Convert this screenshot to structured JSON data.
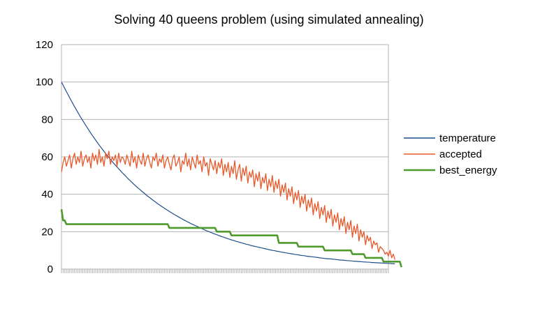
{
  "chart_data": {
    "type": "line",
    "title": "Solving 40 queens problem (using simulated annealing)",
    "xlabel": "",
    "ylabel": "",
    "ylim": [
      0,
      120
    ],
    "yticks": [
      0,
      20,
      40,
      60,
      80,
      100,
      120
    ],
    "x_count": 201,
    "grid": "horizontal",
    "legend_position": "right",
    "series": [
      {
        "name": "temperature",
        "color": "#1f4e8c",
        "values": [
          100,
          98.3,
          96.6,
          94.9,
          93.3,
          91.6,
          90.0,
          88.4,
          86.8,
          85.3,
          83.8,
          82.3,
          80.8,
          79.4,
          78.0,
          76.6,
          75.3,
          73.9,
          72.6,
          71.3,
          70.1,
          68.8,
          67.6,
          66.4,
          65.2,
          64.1,
          62.9,
          61.8,
          60.7,
          59.7,
          58.6,
          57.6,
          56.5,
          55.5,
          54.6,
          53.6,
          52.7,
          51.7,
          50.8,
          49.9,
          49.0,
          48.1,
          47.3,
          46.4,
          45.6,
          44.8,
          44.0,
          43.2,
          42.5,
          41.7,
          41.0,
          40.3,
          39.5,
          38.8,
          38.2,
          37.5,
          36.8,
          36.2,
          35.5,
          34.9,
          34.3,
          33.7,
          33.1,
          32.5,
          31.9,
          31.4,
          30.8,
          30.3,
          29.7,
          29.2,
          28.7,
          28.2,
          27.7,
          27.2,
          26.7,
          26.2,
          25.8,
          25.3,
          24.9,
          24.4,
          24.0,
          23.6,
          23.2,
          22.8,
          22.4,
          22.0,
          21.6,
          21.2,
          20.8,
          20.4,
          20.1,
          19.7,
          19.4,
          19.0,
          18.7,
          18.4,
          18.0,
          17.7,
          17.4,
          17.1,
          16.8,
          16.5,
          16.2,
          15.9,
          15.6,
          15.4,
          15.1,
          14.8,
          14.6,
          14.3,
          14.1,
          13.8,
          13.6,
          13.3,
          13.1,
          12.9,
          12.6,
          12.4,
          12.2,
          12.0,
          11.8,
          11.6,
          11.4,
          11.2,
          11.0,
          10.8,
          10.6,
          10.4,
          10.2,
          10.0,
          9.9,
          9.7,
          9.5,
          9.4,
          9.2,
          9.0,
          8.9,
          8.7,
          8.6,
          8.4,
          8.3,
          8.1,
          8.0,
          7.8,
          7.7,
          7.6,
          7.4,
          7.3,
          7.2,
          7.1,
          6.9,
          6.8,
          6.7,
          6.6,
          6.5,
          6.4,
          6.3,
          6.2,
          6.0,
          5.9,
          5.8,
          5.7,
          5.6,
          5.5,
          5.5,
          5.4,
          5.3,
          5.2,
          5.1,
          5.0,
          4.9,
          4.8,
          4.8,
          4.7,
          4.6,
          4.5,
          4.5,
          4.4,
          4.3,
          4.2,
          4.2,
          4.1,
          4.0,
          4.0,
          3.9,
          3.8,
          3.8,
          3.7,
          3.7,
          3.6,
          3.5,
          3.5,
          3.4,
          3.4,
          3.3,
          3.3,
          3.2,
          3.2,
          3.1,
          3.1,
          3.0,
          3.0,
          2.9,
          2.9,
          2.8
        ]
      },
      {
        "name": "accepted",
        "color": "#e8582a",
        "values": [
          52,
          57,
          60,
          55,
          58,
          61,
          54,
          59,
          62,
          56,
          60,
          57,
          63,
          55,
          59,
          61,
          57,
          60,
          54,
          62,
          58,
          61,
          56,
          64,
          57,
          60,
          55,
          62,
          59,
          63,
          56,
          60,
          58,
          61,
          55,
          62,
          57,
          60,
          59,
          56,
          61,
          58,
          55,
          63,
          57,
          60,
          54,
          61,
          58,
          56,
          62,
          55,
          59,
          61,
          57,
          54,
          60,
          58,
          62,
          55,
          59,
          57,
          61,
          54,
          58,
          60,
          56,
          53,
          59,
          61,
          55,
          57,
          60,
          52,
          58,
          56,
          62,
          55,
          59,
          53,
          60,
          57,
          54,
          61,
          56,
          58,
          52,
          60,
          55,
          57,
          50,
          59,
          56,
          53,
          58,
          51,
          57,
          54,
          59,
          50,
          56,
          52,
          57,
          49,
          55,
          51,
          58,
          48,
          53,
          56,
          47,
          54,
          50,
          55,
          46,
          52,
          49,
          53,
          44,
          51,
          47,
          52,
          43,
          49,
          46,
          51,
          42,
          48,
          44,
          50,
          41,
          47,
          43,
          48,
          39,
          45,
          41,
          46,
          37,
          43,
          39,
          44,
          35,
          41,
          37,
          42,
          33,
          39,
          35,
          40,
          31,
          37,
          33,
          38,
          29,
          35,
          31,
          36,
          27,
          33,
          29,
          34,
          25,
          31,
          27,
          32,
          23,
          29,
          25,
          30,
          21,
          27,
          23,
          28,
          19,
          25,
          21,
          26,
          17,
          23,
          19,
          24,
          15,
          21,
          17,
          20,
          13,
          18,
          15,
          17,
          11,
          15,
          13,
          14,
          9,
          12,
          11,
          10,
          8,
          9,
          7,
          10,
          6,
          8,
          5
        ]
      },
      {
        "name": "best_energy",
        "color": "#4e9a2a",
        "values": [
          32,
          26,
          26,
          24,
          24,
          24,
          24,
          24,
          24,
          24,
          24,
          24,
          24,
          24,
          24,
          24,
          24,
          24,
          24,
          24,
          24,
          24,
          24,
          24,
          24,
          24,
          24,
          24,
          24,
          24,
          24,
          24,
          24,
          24,
          24,
          24,
          24,
          24,
          24,
          24,
          24,
          24,
          24,
          24,
          24,
          24,
          24,
          24,
          24,
          24,
          24,
          24,
          24,
          24,
          24,
          24,
          24,
          24,
          24,
          24,
          24,
          24,
          24,
          24,
          24,
          24,
          22,
          22,
          22,
          22,
          22,
          22,
          22,
          22,
          22,
          22,
          22,
          22,
          22,
          22,
          22,
          22,
          22,
          22,
          22,
          22,
          22,
          22,
          22,
          22,
          22,
          22,
          22,
          22,
          22,
          20,
          20,
          20,
          20,
          20,
          20,
          20,
          20,
          20,
          18,
          18,
          18,
          18,
          18,
          18,
          18,
          18,
          18,
          18,
          18,
          18,
          18,
          18,
          18,
          18,
          18,
          18,
          18,
          18,
          18,
          18,
          18,
          18,
          18,
          18,
          18,
          18,
          18,
          14,
          14,
          14,
          14,
          14,
          14,
          14,
          14,
          14,
          14,
          14,
          14,
          12,
          12,
          12,
          12,
          12,
          12,
          12,
          12,
          12,
          12,
          12,
          12,
          12,
          12,
          12,
          12,
          10,
          10,
          10,
          10,
          10,
          10,
          10,
          10,
          10,
          10,
          10,
          10,
          10,
          10,
          10,
          10,
          10,
          8,
          8,
          8,
          8,
          8,
          8,
          8,
          8,
          6,
          6,
          6,
          6,
          6,
          6,
          6,
          6,
          6,
          6,
          6,
          4,
          4,
          4,
          4,
          4,
          4,
          4,
          4,
          4,
          4,
          4,
          1
        ]
      }
    ]
  }
}
